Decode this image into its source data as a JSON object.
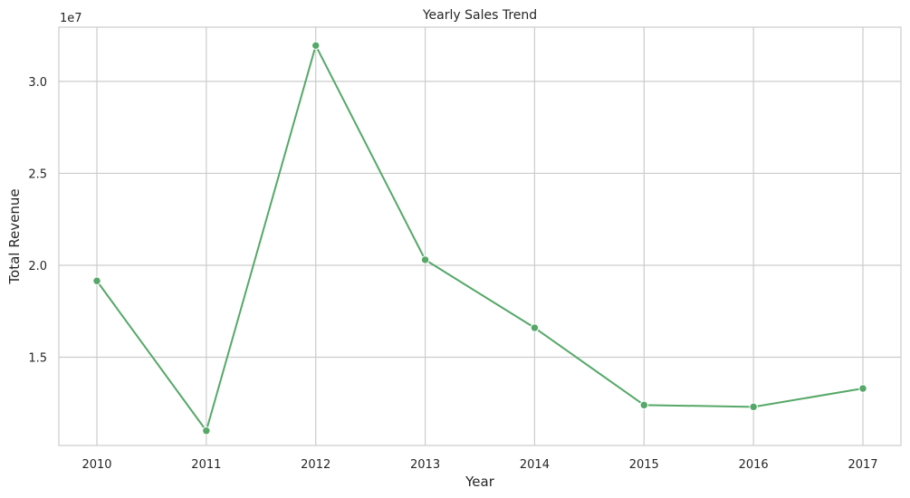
{
  "chart_data": {
    "type": "line",
    "title": "Yearly Sales Trend",
    "xlabel": "Year",
    "ylabel": "Total Revenue",
    "y_offset_label": "1e7",
    "x": [
      "2010",
      "2011",
      "2012",
      "2013",
      "2014",
      "2015",
      "2016",
      "2017"
    ],
    "series": [
      {
        "values": [
          19150000,
          11000000,
          31950000,
          20300000,
          16600000,
          12400000,
          12300000,
          13300000
        ]
      }
    ],
    "y_ticks": [
      15000000,
      20000000,
      25000000,
      30000000
    ],
    "y_tick_labels": [
      "1.5",
      "2.0",
      "2.5",
      "3.0"
    ],
    "ylim": [
      10200000,
      32950000
    ],
    "grid": true,
    "line_color": "#55a868",
    "marker": "circle"
  }
}
